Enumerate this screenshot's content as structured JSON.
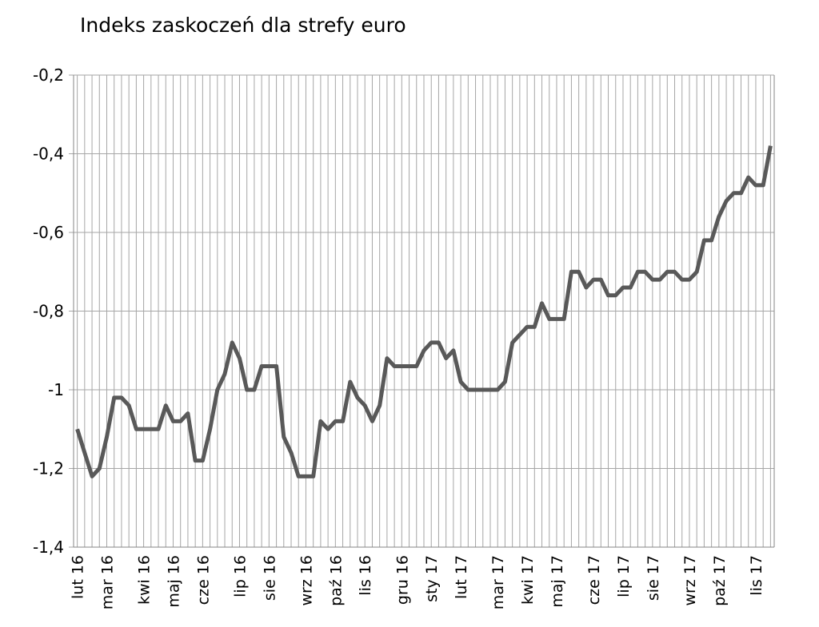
{
  "chart_data": {
    "type": "line",
    "title": "Indeks zaskoczeń dla strefy euro",
    "color": "#595959",
    "grid": true,
    "categories": [
      "lut 16",
      null,
      null,
      null,
      "mar 16",
      null,
      null,
      null,
      null,
      "kwi 16",
      null,
      null,
      null,
      "maj 16",
      null,
      null,
      null,
      "cze 16",
      null,
      null,
      null,
      null,
      "lip 16",
      null,
      null,
      null,
      "sie 16",
      null,
      null,
      null,
      null,
      "wrz 16",
      null,
      null,
      null,
      "paź 16",
      null,
      null,
      null,
      "lis 16",
      null,
      null,
      null,
      null,
      "gru 16",
      null,
      null,
      null,
      "sty 17",
      null,
      null,
      null,
      "lut 17",
      null,
      null,
      null,
      null,
      "mar 17",
      null,
      null,
      null,
      "kwi 17",
      null,
      null,
      null,
      "maj 17",
      null,
      null,
      null,
      null,
      "cze 17",
      null,
      null,
      null,
      "lip 17",
      null,
      null,
      null,
      "sie 17",
      null,
      null,
      null,
      null,
      "wrz 17",
      null,
      null,
      null,
      "paź 17",
      null,
      null,
      null,
      null,
      "lis 17",
      null,
      null
    ],
    "values": [
      -1.1,
      -1.16,
      -1.22,
      -1.2,
      -1.12,
      -1.02,
      -1.02,
      -1.04,
      -1.1,
      -1.1,
      -1.1,
      -1.1,
      -1.04,
      -1.08,
      -1.08,
      -1.06,
      -1.18,
      -1.18,
      -1.1,
      -1.0,
      -0.96,
      -0.88,
      -0.92,
      -1.0,
      -1.0,
      -0.94,
      -0.94,
      -0.94,
      -1.12,
      -1.16,
      -1.22,
      -1.22,
      -1.22,
      -1.08,
      -1.1,
      -1.08,
      -1.08,
      -0.98,
      -1.02,
      -1.04,
      -1.08,
      -1.04,
      -0.92,
      -0.94,
      -0.94,
      -0.94,
      -0.94,
      -0.9,
      -0.88,
      -0.88,
      -0.92,
      -0.9,
      -0.98,
      -1.0,
      -1.0,
      -1.0,
      -1.0,
      -1.0,
      -0.98,
      -0.88,
      -0.86,
      -0.84,
      -0.84,
      -0.78,
      -0.82,
      -0.82,
      -0.82,
      -0.7,
      -0.7,
      -0.74,
      -0.72,
      -0.72,
      -0.76,
      -0.76,
      -0.74,
      -0.74,
      -0.7,
      -0.7,
      -0.72,
      -0.72,
      -0.7,
      -0.7,
      -0.72,
      -0.72,
      -0.7,
      -0.62,
      -0.62,
      -0.56,
      -0.52,
      -0.5,
      -0.5,
      -0.46,
      -0.48,
      -0.48,
      -0.38
    ],
    "ylim": [
      -1.4,
      -0.2
    ],
    "yticks": [
      {
        "value": -1.4,
        "label": "-1,4"
      },
      {
        "value": -1.2,
        "label": "-1,2"
      },
      -1,
      {
        "value": -0.8,
        "label": "-0,8"
      },
      {
        "value": -0.6,
        "label": "-0,6"
      },
      {
        "value": -0.4,
        "label": "-0,4"
      },
      {
        "value": -0.2,
        "label": "-0,2"
      }
    ]
  }
}
